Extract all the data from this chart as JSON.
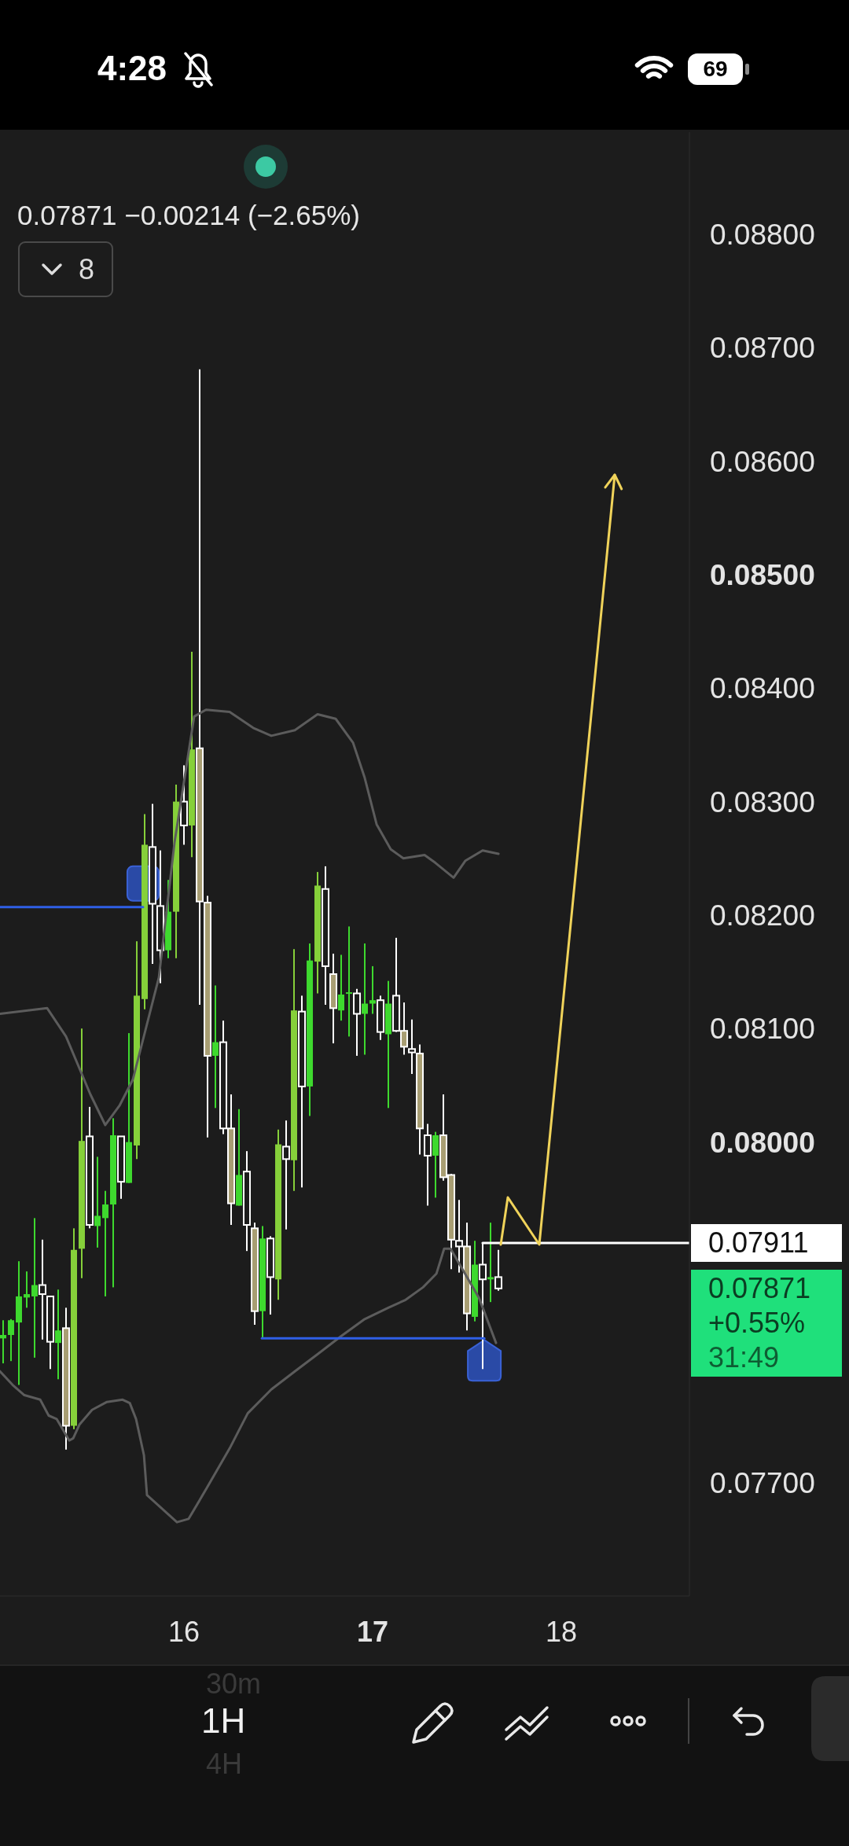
{
  "chart_data": {
    "type": "candlestick",
    "subtitle": "0.07871 −0.00214 (−2.65%)",
    "x": [
      15.0417,
      15.0833,
      15.125,
      15.1667,
      15.2083,
      15.25,
      15.2917,
      15.3333,
      15.375,
      15.4167,
      15.4583,
      15.5,
      15.5417,
      15.5833,
      15.625,
      15.6667,
      15.7083,
      15.75,
      15.7917,
      15.8333,
      15.875,
      15.9167,
      15.9583,
      16,
      16.0417,
      16.0833,
      16.125,
      16.1667,
      16.2083,
      16.25,
      16.2917,
      16.3333,
      16.375,
      16.4167,
      16.4583,
      16.5,
      16.5417,
      16.5833,
      16.625,
      16.6667,
      16.7083,
      16.75,
      16.7917,
      16.8333,
      16.875,
      16.9167,
      16.9583,
      17,
      17.0417,
      17.0833,
      17.125,
      17.1667,
      17.2083,
      17.25,
      17.2917,
      17.3333,
      17.375,
      17.4167,
      17.4583,
      17.5,
      17.5417,
      17.5833,
      17.625,
      17.6667
    ],
    "ohlc": [
      [
        0.07827,
        0.07843,
        0.07805,
        0.0783
      ],
      [
        0.0783,
        0.07844,
        0.07807,
        0.07843
      ],
      [
        0.07841,
        0.07895,
        0.07786,
        0.07864
      ],
      [
        0.07863,
        0.07886,
        0.07854,
        0.07866
      ],
      [
        0.07864,
        0.07933,
        0.0781,
        0.07874
      ],
      [
        0.07874,
        0.07914,
        0.07826,
        0.07866
      ],
      [
        0.07864,
        0.07864,
        0.078,
        0.07824
      ],
      [
        0.07823,
        0.0787,
        0.07791,
        0.07834
      ],
      [
        0.07836,
        0.07854,
        0.07729,
        0.0775
      ],
      [
        0.0775,
        0.07924,
        0.07747,
        0.07905
      ],
      [
        0.07906,
        0.081,
        0.0788,
        0.08001
      ],
      [
        0.08005,
        0.08031,
        0.07924,
        0.07927
      ],
      [
        0.07926,
        0.07987,
        0.07907,
        0.07935
      ],
      [
        0.07933,
        0.07957,
        0.07864,
        0.07945
      ],
      [
        0.07945,
        0.08021,
        0.07872,
        0.08006
      ],
      [
        0.08005,
        0.08005,
        0.0795,
        0.07965
      ],
      [
        0.07964,
        0.08096,
        0.07964,
        0.08
      ],
      [
        0.07997,
        0.08177,
        0.07985,
        0.08129
      ],
      [
        0.08126,
        0.08289,
        0.08117,
        0.08262
      ],
      [
        0.0826,
        0.08298,
        0.08157,
        0.0821
      ],
      [
        0.08208,
        0.08257,
        0.0814,
        0.08169
      ],
      [
        0.08169,
        0.08231,
        0.08162,
        0.08203
      ],
      [
        0.08203,
        0.08315,
        0.08162,
        0.083
      ],
      [
        0.083,
        0.08332,
        0.08262,
        0.08279
      ],
      [
        0.08279,
        0.08432,
        0.08251,
        0.08346
      ],
      [
        0.08347,
        0.08681,
        0.08121,
        0.08212
      ],
      [
        0.08211,
        0.08217,
        0.08004,
        0.08076
      ],
      [
        0.08076,
        0.08138,
        0.0803,
        0.08088
      ],
      [
        0.08088,
        0.08107,
        0.08007,
        0.08012
      ],
      [
        0.08012,
        0.08042,
        0.07927,
        0.07946
      ],
      [
        0.07944,
        0.08029,
        0.07944,
        0.07971
      ],
      [
        0.07974,
        0.07992,
        0.07904,
        0.07927
      ],
      [
        0.07924,
        0.07929,
        0.07839,
        0.07851
      ],
      [
        0.07851,
        0.07926,
        0.07827,
        0.07915
      ],
      [
        0.07915,
        0.07917,
        0.07848,
        0.07881
      ],
      [
        0.07879,
        0.08011,
        0.07861,
        0.07998
      ],
      [
        0.07996,
        0.08019,
        0.07923,
        0.07985
      ],
      [
        0.07984,
        0.0817,
        0.07957,
        0.08116
      ],
      [
        0.08115,
        0.08129,
        0.0796,
        0.08049
      ],
      [
        0.08049,
        0.08175,
        0.08023,
        0.0816
      ],
      [
        0.08159,
        0.08238,
        0.08131,
        0.08226
      ],
      [
        0.08223,
        0.08243,
        0.08121,
        0.08155
      ],
      [
        0.08148,
        0.08166,
        0.08087,
        0.08118
      ],
      [
        0.08116,
        0.08165,
        0.08107,
        0.0813
      ],
      [
        0.08131,
        0.0819,
        0.08093,
        0.08132
      ],
      [
        0.08131,
        0.08135,
        0.08076,
        0.08113
      ],
      [
        0.08113,
        0.08175,
        0.08077,
        0.08122
      ],
      [
        0.08122,
        0.08155,
        0.08113,
        0.08125
      ],
      [
        0.08125,
        0.08129,
        0.0809,
        0.08097
      ],
      [
        0.08095,
        0.08142,
        0.0803,
        0.08122
      ],
      [
        0.08129,
        0.0818,
        0.08097,
        0.08098
      ],
      [
        0.08098,
        0.08123,
        0.08077,
        0.08084
      ],
      [
        0.08082,
        0.08108,
        0.0806,
        0.08079
      ],
      [
        0.08078,
        0.08086,
        0.07989,
        0.08012
      ],
      [
        0.08006,
        0.08016,
        0.07944,
        0.07988
      ],
      [
        0.07988,
        0.08009,
        0.07951,
        0.08006
      ],
      [
        0.08006,
        0.08042,
        0.07966,
        0.07969
      ],
      [
        0.07971,
        0.07972,
        0.07888,
        0.07914
      ],
      [
        0.07913,
        0.07949,
        0.07885,
        0.07908
      ],
      [
        0.07908,
        0.07929,
        0.07834,
        0.07849
      ],
      [
        0.07846,
        0.07913,
        0.07842,
        0.07892
      ],
      [
        0.07892,
        0.07911,
        0.078,
        0.07879
      ],
      [
        0.07879,
        0.07929,
        0.07859,
        0.07881
      ],
      [
        0.07881,
        0.07905,
        0.07869,
        0.07871
      ]
    ],
    "colors": [
      "#3ed92e",
      "#3ed92e",
      "#3ed92e",
      "#3ed92e",
      "#3ed92e",
      "#ffffff",
      "#ffffff",
      "#3ed92e",
      "#a89e73",
      "#86d03a",
      "#86d03a",
      "#ffffff",
      "#3ed92e",
      "#3ed92e",
      "#3ed92e",
      "#ffffff",
      "#3ed92e",
      "#86d03a",
      "#86d03a",
      "#ffffff",
      "#ffffff",
      "#3ed92e",
      "#86d03a",
      "#ffffff",
      "#86d03a",
      "#a89e73",
      "#a89e73",
      "#3ed92e",
      "#ffffff",
      "#a89e73",
      "#3ed92e",
      "#ffffff",
      "#a89e73",
      "#3ed92e",
      "#ffffff",
      "#86d03a",
      "#ffffff",
      "#86d03a",
      "#ffffff",
      "#3ed92e",
      "#86d03a",
      "#ffffff",
      "#a89e73",
      "#3ed92e",
      "#3ed92e",
      "#ffffff",
      "#3ed92e",
      "#3ed92e",
      "#ffffff",
      "#3ed92e",
      "#ffffff",
      "#a89e73",
      "#ffffff",
      "#a89e73",
      "#ffffff",
      "#3ed92e",
      "#a89e73",
      "#a89e73",
      "#ffffff",
      "#a89e73",
      "#3ed92e",
      "#ffffff",
      "#3ed92e",
      "#ffffff"
    ],
    "series": [
      {
        "type": "line",
        "color": "#5c5c5c",
        "x": [
          15.025,
          15.275,
          15.375,
          15.504,
          15.583,
          15.658,
          15.729,
          15.867,
          15.95,
          16.054,
          16.117,
          16.242,
          16.367,
          16.463,
          16.588,
          16.708,
          16.804,
          16.896,
          16.958,
          17.021,
          17.096,
          17.163,
          17.275,
          17.333,
          17.429,
          17.492,
          17.583,
          17.667
        ],
        "values": [
          0.08113,
          0.08118,
          0.08093,
          0.08042,
          0.08015,
          0.08032,
          0.08055,
          0.08145,
          0.08264,
          0.08375,
          0.08381,
          0.08379,
          0.08365,
          0.08358,
          0.08363,
          0.08377,
          0.08373,
          0.08352,
          0.08321,
          0.0828,
          0.08258,
          0.0825,
          0.08253,
          0.08246,
          0.08233,
          0.08248,
          0.08257,
          0.08254
        ]
      },
      {
        "type": "line",
        "color": "#5c5c5c",
        "x": [
          15.025,
          15.092,
          15.154,
          15.238,
          15.283,
          15.325,
          15.392,
          15.413,
          15.446,
          15.513,
          15.592,
          15.675,
          15.713,
          15.746,
          15.788,
          15.804,
          15.963,
          16.025,
          16.117,
          16.242,
          16.338,
          16.463,
          16.588,
          16.708,
          16.833,
          16.958,
          17.083,
          17.175,
          17.267,
          17.338,
          17.379,
          17.413,
          17.563,
          17.654
        ],
        "values": [
          0.07798,
          0.07786,
          0.07777,
          0.07773,
          0.07759,
          0.07756,
          0.07737,
          0.07739,
          0.07751,
          0.07764,
          0.07771,
          0.07773,
          0.0777,
          0.07756,
          0.07724,
          0.07689,
          0.07665,
          0.07668,
          0.07694,
          0.0773,
          0.07761,
          0.07782,
          0.07798,
          0.07813,
          0.07829,
          0.07844,
          0.07854,
          0.07861,
          0.07872,
          0.07884,
          0.07906,
          0.07906,
          0.07863,
          0.07823
        ]
      },
      {
        "type": "line",
        "color": "#2f5fe6",
        "x": [
          15.025,
          15.783
        ],
        "values": [
          0.08207,
          0.08207
        ]
      },
      {
        "type": "line",
        "color": "#2f5fe6",
        "x": [
          16.413,
          17.592
        ],
        "values": [
          0.07827,
          0.07827
        ]
      },
      {
        "type": "line",
        "color": "#ffffff",
        "x": [
          17.583,
          18.679
        ],
        "values": [
          0.07911,
          0.07911
        ]
      }
    ],
    "xlim": [
      15.025,
      18.679
    ],
    "xticks": [
      16,
      17,
      18
    ],
    "ylim": [
      0.076,
      0.0889
    ],
    "yticks": [
      {
        "value": 0.077,
        "label": "0.07700"
      },
      {
        "value": 0.08,
        "label": "0.08000"
      },
      {
        "value": 0.081,
        "label": "0.08100"
      },
      {
        "value": 0.082,
        "label": "0.08200"
      },
      {
        "value": 0.083,
        "label": "0.08300"
      },
      {
        "value": 0.084,
        "label": "0.08400"
      },
      {
        "value": 0.085,
        "label": "0.08500"
      },
      {
        "value": 0.086,
        "label": "0.08600"
      },
      {
        "value": 0.087,
        "label": "0.08700"
      },
      {
        "value": 0.088,
        "label": "0.08800"
      }
    ],
    "annotations": [
      "4:28",
      "69",
      "8",
      {
        "text": "0.07911",
        "x": 18.679,
        "y": 0.07911
      },
      "0.07871",
      "+0.55%",
      "31:49",
      "1H",
      "30m",
      "4H"
    ]
  }
}
